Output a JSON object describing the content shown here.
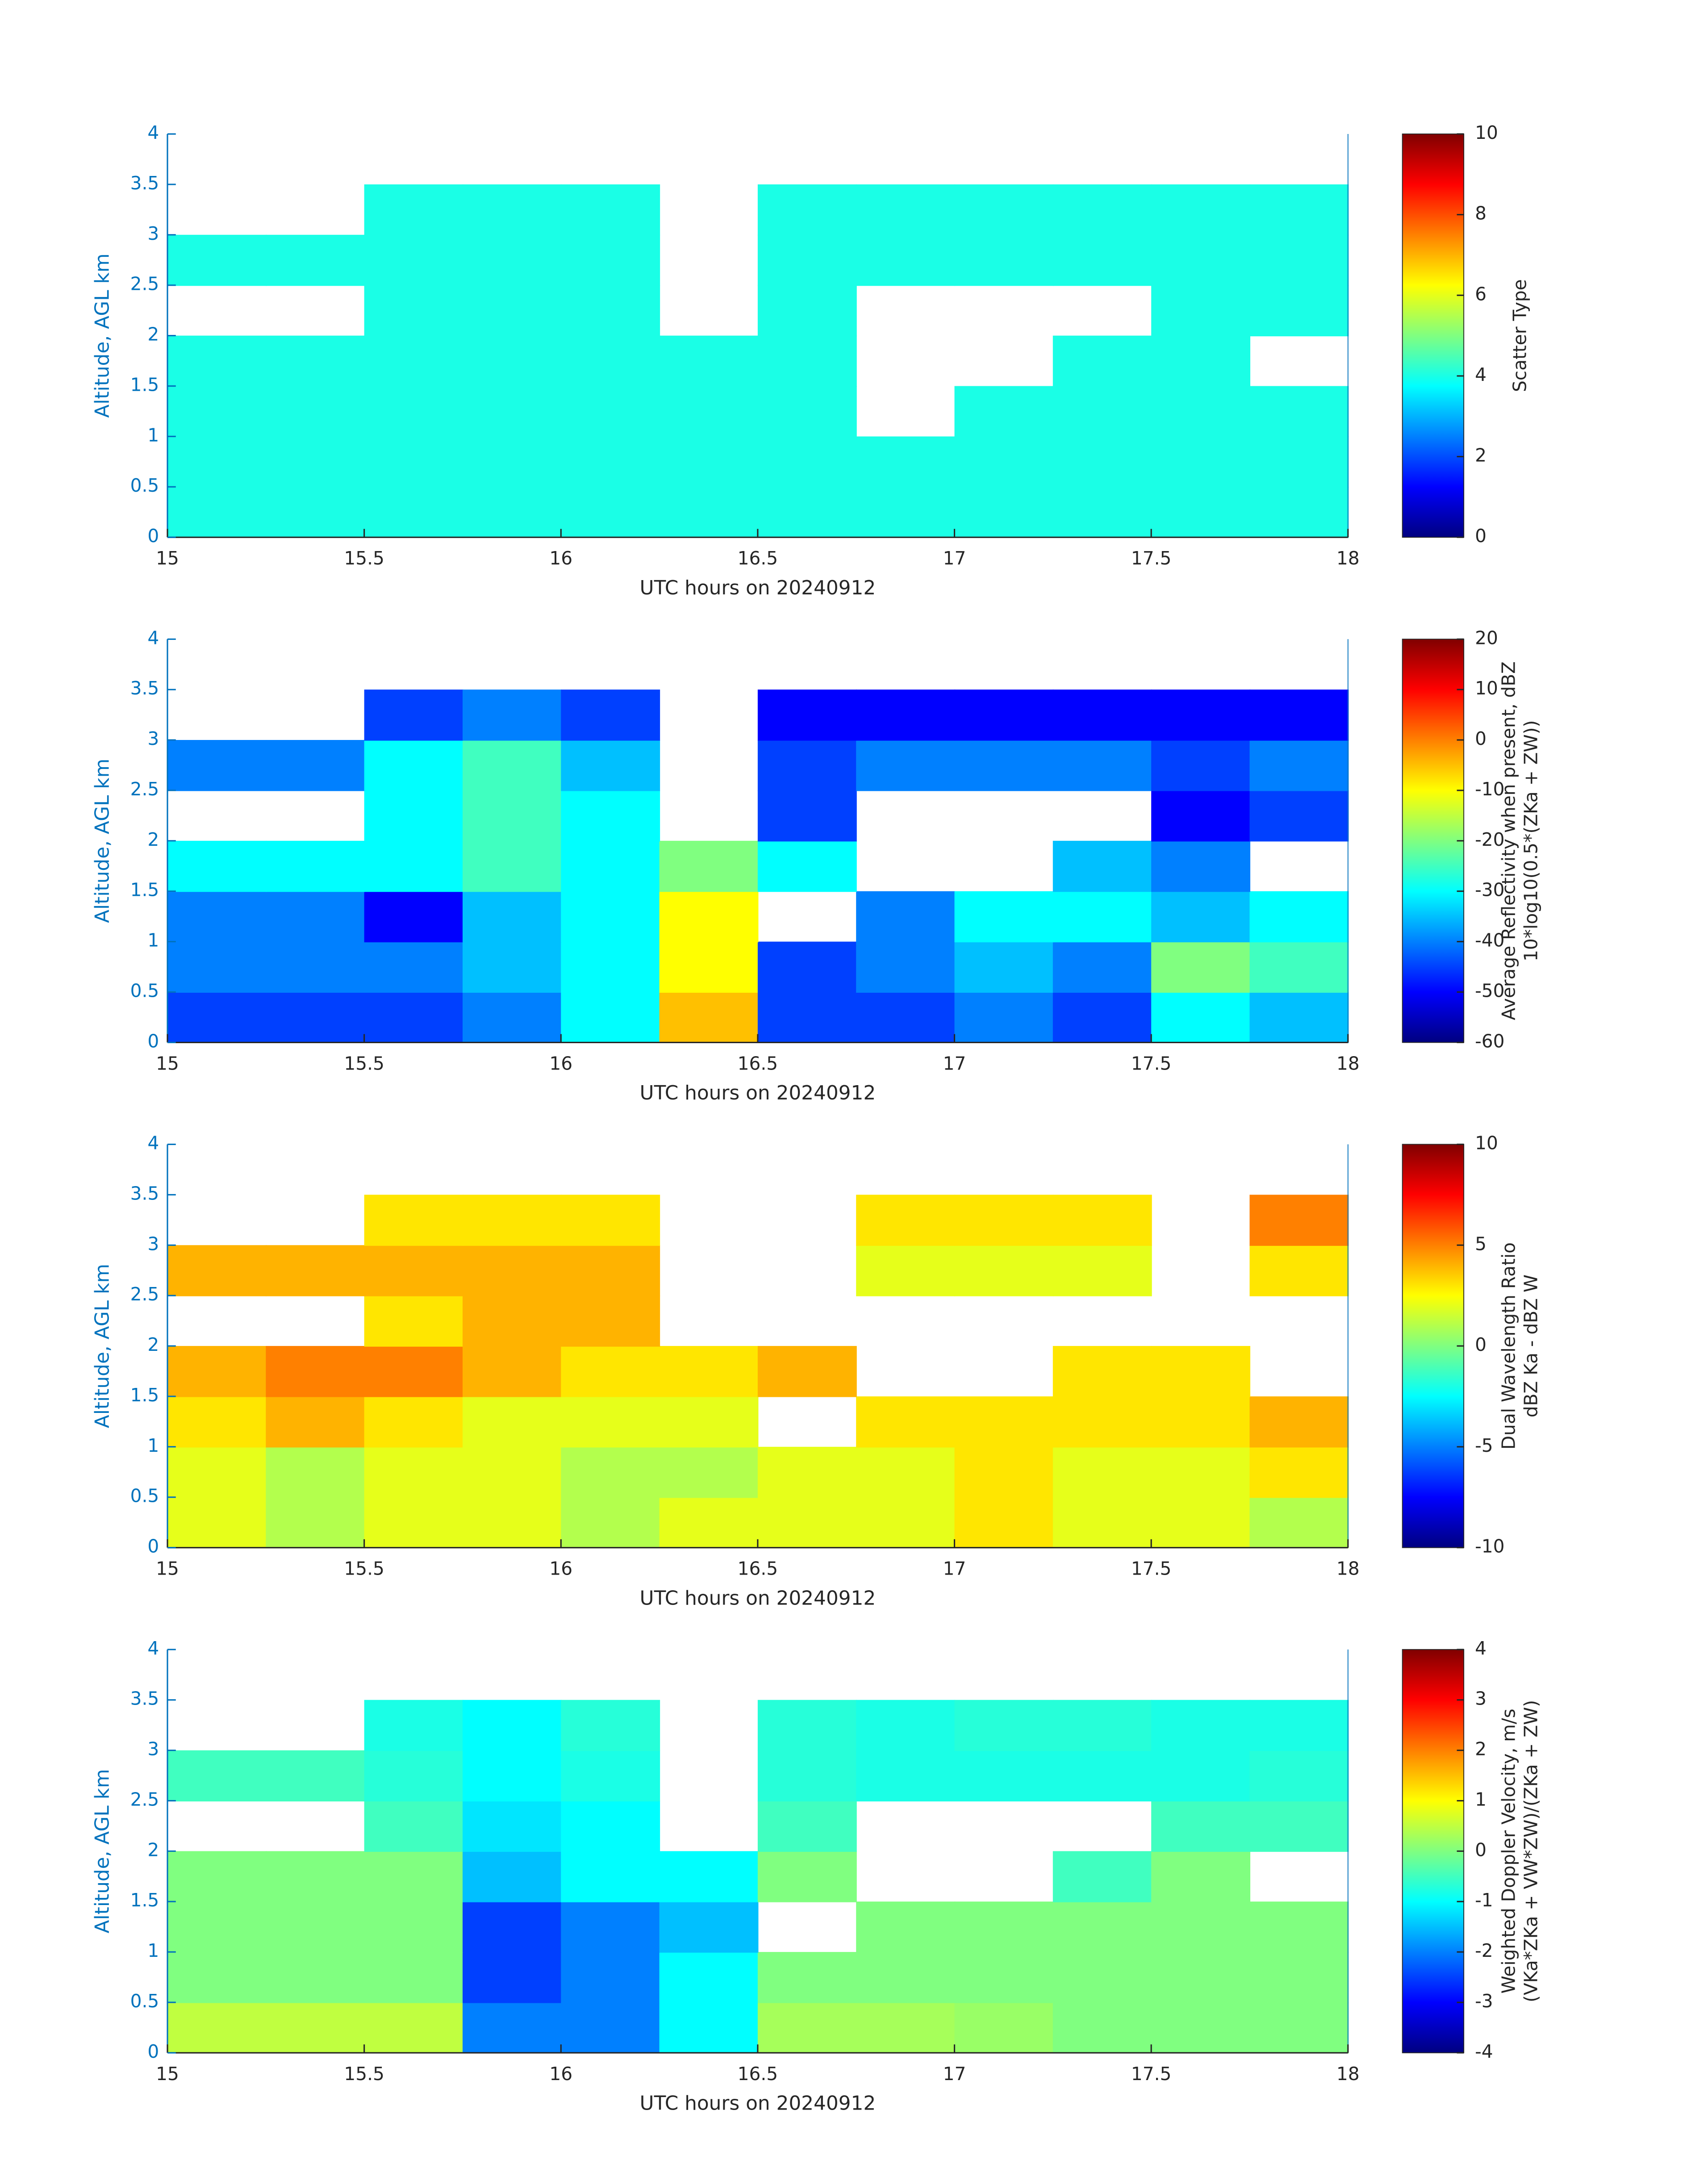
{
  "chart_data": [
    {
      "type": "heatmap",
      "xlabel": "UTC hours on 20240912",
      "ylabel": "Altitude, AGL km",
      "x": [
        15,
        15.25,
        15.5,
        15.75,
        16,
        16.25,
        16.5,
        16.75,
        17,
        17.25,
        17.5,
        17.75,
        18
      ],
      "y": [
        0,
        0.5,
        1,
        1.5,
        2,
        2.5,
        3,
        3.5,
        4
      ],
      "xlim": [
        15,
        18
      ],
      "ylim": [
        0,
        4
      ],
      "xticks": [
        15,
        15.5,
        16,
        16.5,
        17,
        17.5,
        18
      ],
      "yticks": [
        0,
        0.5,
        1,
        1.5,
        2,
        2.5,
        3,
        3.5,
        4
      ],
      "clim": [
        0,
        10
      ],
      "cticks": [
        0,
        2,
        4,
        6,
        8,
        10
      ],
      "colorbar_label": [
        "Scatter Type"
      ],
      "colormap": [
        "#000080",
        "#0000ff",
        "#0080ff",
        "#00ffff",
        "#80ff80",
        "#ffff00",
        "#ff8000",
        "#ff0000",
        "#800000"
      ],
      "z": [
        [
          4,
          4,
          4,
          4,
          4,
          4,
          4,
          4,
          4,
          4,
          4,
          4
        ],
        [
          4,
          4,
          4,
          4,
          4,
          4,
          4,
          4,
          4,
          4,
          4,
          4
        ],
        [
          4,
          4,
          4,
          4,
          4,
          4,
          4,
          null,
          4,
          4,
          4,
          4
        ],
        [
          4,
          4,
          4,
          4,
          4,
          4,
          4,
          null,
          null,
          4,
          4,
          null
        ],
        [
          null,
          null,
          4,
          4,
          4,
          null,
          4,
          null,
          null,
          null,
          4,
          4
        ],
        [
          4,
          4,
          4,
          4,
          4,
          null,
          4,
          4,
          4,
          4,
          4,
          4
        ],
        [
          null,
          null,
          4,
          4,
          4,
          null,
          4,
          4,
          4,
          4,
          4,
          4
        ],
        [
          null,
          null,
          null,
          null,
          null,
          null,
          null,
          null,
          null,
          null,
          null,
          null
        ]
      ]
    },
    {
      "type": "heatmap",
      "xlabel": "UTC hours on 20240912",
      "ylabel": "Altitude, AGL km",
      "x": [
        15,
        15.25,
        15.5,
        15.75,
        16,
        16.25,
        16.5,
        16.75,
        17,
        17.25,
        17.5,
        17.75,
        18
      ],
      "y": [
        0,
        0.5,
        1,
        1.5,
        2,
        2.5,
        3,
        3.5,
        4
      ],
      "xlim": [
        15,
        18
      ],
      "ylim": [
        0,
        4
      ],
      "xticks": [
        15,
        15.5,
        16,
        16.5,
        17,
        17.5,
        18
      ],
      "yticks": [
        0,
        0.5,
        1,
        1.5,
        2,
        2.5,
        3,
        3.5,
        4
      ],
      "clim": [
        -60,
        20
      ],
      "cticks": [
        -60,
        -50,
        -40,
        -30,
        -20,
        -10,
        0,
        10,
        20
      ],
      "colorbar_label": [
        "Average Reflectivity when present, dBZ",
        "10*log10(0.5*(ZKa + ZW))"
      ],
      "colormap": [
        "#000080",
        "#0000ff",
        "#0080ff",
        "#00ffff",
        "#80ff80",
        "#ffff00",
        "#ff8000",
        "#ff0000",
        "#800000"
      ],
      "z": [
        [
          -45,
          -45,
          -45,
          -40,
          -30,
          -5,
          -45,
          -45,
          -40,
          -45,
          -30,
          -35
        ],
        [
          -40,
          -40,
          -40,
          -35,
          -30,
          -10,
          -45,
          -40,
          -35,
          -40,
          -20,
          -25
        ],
        [
          -40,
          -40,
          -50,
          -35,
          -30,
          -10,
          null,
          -40,
          -30,
          -30,
          -35,
          -30
        ],
        [
          -30,
          -30,
          -30,
          -25,
          -30,
          -20,
          -30,
          null,
          null,
          -35,
          -40,
          null
        ],
        [
          null,
          null,
          -30,
          -25,
          -30,
          null,
          -45,
          null,
          null,
          null,
          -50,
          -45
        ],
        [
          -40,
          -40,
          -30,
          -25,
          -35,
          null,
          -45,
          -40,
          -40,
          -40,
          -45,
          -40
        ],
        [
          null,
          null,
          -45,
          -40,
          -45,
          null,
          -50,
          -50,
          -50,
          -50,
          -50,
          -50
        ],
        [
          null,
          null,
          null,
          null,
          null,
          null,
          null,
          null,
          null,
          null,
          null,
          null
        ]
      ]
    },
    {
      "type": "heatmap",
      "xlabel": "UTC hours on 20240912",
      "ylabel": "Altitude, AGL km",
      "x": [
        15,
        15.25,
        15.5,
        15.75,
        16,
        16.25,
        16.5,
        16.75,
        17,
        17.25,
        17.5,
        17.75,
        18
      ],
      "y": [
        0,
        0.5,
        1,
        1.5,
        2,
        2.5,
        3,
        3.5,
        4
      ],
      "xlim": [
        15,
        18
      ],
      "ylim": [
        0,
        4
      ],
      "xticks": [
        15,
        15.5,
        16,
        16.5,
        17,
        17.5,
        18
      ],
      "yticks": [
        0,
        0.5,
        1,
        1.5,
        2,
        2.5,
        3,
        3.5,
        4
      ],
      "clim": [
        -10,
        10
      ],
      "cticks": [
        -10,
        -5,
        0,
        5,
        10
      ],
      "colorbar_label": [
        "Dual Wavelength Ratio",
        "dBZ Ka - dBZ W"
      ],
      "colormap": [
        "#000080",
        "#0000ff",
        "#0080ff",
        "#00ffff",
        "#80ff80",
        "#ffff00",
        "#ff8000",
        "#ff0000",
        "#800000"
      ],
      "z": [
        [
          2,
          1,
          2,
          2,
          1,
          2,
          2,
          2,
          3,
          2,
          2,
          1
        ],
        [
          2,
          1,
          2,
          2,
          1,
          1,
          2,
          2,
          3,
          2,
          2,
          3
        ],
        [
          3,
          4,
          3,
          2,
          2,
          2,
          null,
          3,
          3,
          3,
          3,
          4
        ],
        [
          4,
          5,
          5,
          4,
          3,
          3,
          4,
          null,
          null,
          3,
          3,
          null
        ],
        [
          null,
          null,
          3,
          4,
          4,
          null,
          null,
          null,
          null,
          null,
          null,
          null
        ],
        [
          4,
          4,
          4,
          4,
          4,
          null,
          null,
          2,
          2,
          2,
          null,
          3
        ],
        [
          null,
          null,
          3,
          3,
          3,
          null,
          null,
          3,
          3,
          3,
          null,
          5
        ],
        [
          null,
          null,
          null,
          null,
          null,
          null,
          null,
          null,
          null,
          null,
          null,
          null
        ]
      ]
    },
    {
      "type": "heatmap",
      "xlabel": "UTC hours on 20240912",
      "ylabel": "Altitude, AGL km",
      "x": [
        15,
        15.25,
        15.5,
        15.75,
        16,
        16.25,
        16.5,
        16.75,
        17,
        17.25,
        17.5,
        17.75,
        18
      ],
      "y": [
        0,
        0.5,
        1,
        1.5,
        2,
        2.5,
        3,
        3.5,
        4
      ],
      "xlim": [
        15,
        18
      ],
      "ylim": [
        0,
        4
      ],
      "xticks": [
        15,
        15.5,
        16,
        16.5,
        17,
        17.5,
        18
      ],
      "yticks": [
        0,
        0.5,
        1,
        1.5,
        2,
        2.5,
        3,
        3.5,
        4
      ],
      "clim": [
        -4,
        4
      ],
      "cticks": [
        -4,
        -3,
        -2,
        -1,
        0,
        1,
        2,
        3,
        4
      ],
      "colorbar_label": [
        "Weighted Doppler Velocity, m/s",
        "(VKa*ZKa + VW*ZW)/(ZKa + ZW)"
      ],
      "colormap": [
        "#000080",
        "#0000ff",
        "#0080ff",
        "#00ffff",
        "#80ff80",
        "#ffff00",
        "#ff8000",
        "#ff0000",
        "#800000"
      ],
      "z": [
        [
          0.5,
          0.5,
          0.5,
          -2,
          -2,
          -1,
          0.3,
          0.3,
          0.2,
          0,
          0,
          0
        ],
        [
          0,
          0,
          0,
          -2.5,
          -2,
          -1,
          0,
          0,
          0,
          0,
          0,
          0
        ],
        [
          0,
          0,
          0,
          -2.5,
          -2,
          -1.5,
          null,
          0,
          0,
          0,
          0,
          0
        ],
        [
          0,
          0,
          0,
          -1.5,
          -1,
          -1,
          0,
          null,
          null,
          -0.5,
          0,
          null
        ],
        [
          null,
          null,
          -0.5,
          -1.2,
          -1,
          null,
          -0.5,
          null,
          null,
          null,
          -0.5,
          -0.5
        ],
        [
          -0.5,
          -0.5,
          -0.7,
          -1,
          -0.8,
          null,
          -0.7,
          -0.8,
          -0.8,
          -0.8,
          -0.8,
          -0.7
        ],
        [
          null,
          null,
          -0.8,
          -1,
          -0.7,
          null,
          -0.7,
          -0.8,
          -0.7,
          -0.7,
          -0.8,
          -0.8
        ],
        [
          null,
          null,
          null,
          null,
          null,
          null,
          null,
          null,
          null,
          null,
          null,
          null
        ]
      ]
    }
  ]
}
